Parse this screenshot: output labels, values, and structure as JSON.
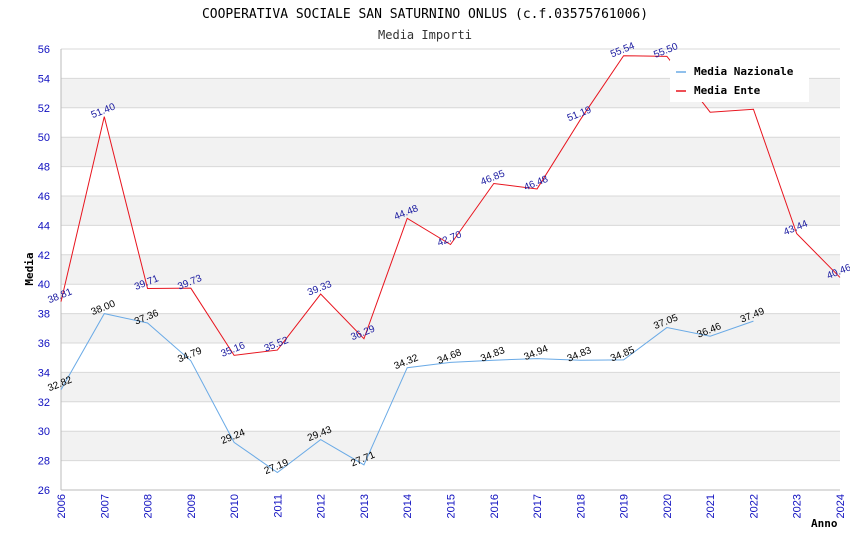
{
  "chart_data": {
    "type": "line",
    "title": "COOPERATIVA SOCIALE SAN SATURNINO ONLUS (c.f.03575761006)",
    "subtitle": "Media Importi",
    "xlabel": "Anno",
    "ylabel": "Media",
    "ylim": [
      26,
      56
    ],
    "ytick_step": 2,
    "yticks": [
      "26",
      "28",
      "30",
      "32",
      "34",
      "36",
      "38",
      "40",
      "42",
      "44",
      "46",
      "48",
      "50",
      "52",
      "54",
      "56"
    ],
    "categories": [
      "2006",
      "2007",
      "2008",
      "2009",
      "2010",
      "2011",
      "2012",
      "2013",
      "2014",
      "2015",
      "2016",
      "2017",
      "2018",
      "2019",
      "2020",
      "2021",
      "2022",
      "2023",
      "2024"
    ],
    "legend_position": "top-right",
    "series": [
      {
        "name": "Media Nazionale",
        "color": "#6aaae6",
        "label_color": "#000000",
        "values": [
          32.82,
          38.0,
          37.36,
          34.79,
          29.24,
          27.19,
          29.43,
          27.71,
          34.32,
          34.68,
          34.83,
          34.94,
          34.83,
          34.85,
          37.05,
          36.46,
          37.49,
          null,
          null
        ],
        "labels": [
          "32.82",
          "38.00",
          "37.36",
          "34.79",
          "29.24",
          "27.19",
          "29.43",
          "27.71",
          "34.32",
          "34.68",
          "34.83",
          "34.94",
          "34.83",
          "34.85",
          "37.05",
          "36.46",
          "37.49",
          "",
          ""
        ]
      },
      {
        "name": "Media Ente",
        "color": "#e8141e",
        "label_color": "#1a1aa0",
        "values": [
          38.81,
          51.4,
          39.71,
          39.73,
          35.16,
          35.52,
          39.33,
          36.29,
          44.48,
          42.7,
          46.85,
          46.48,
          51.19,
          55.54,
          55.5,
          51.7,
          51.9,
          43.44,
          40.46
        ],
        "labels": [
          "38.81",
          "51.40",
          "39.71",
          "39.73",
          "35.16",
          "35.52",
          "39.33",
          "36.29",
          "44.48",
          "42.70",
          "46.85",
          "46.48",
          "51.19",
          "55.54",
          "55.50",
          "",
          "",
          "43.44",
          "40.46"
        ]
      }
    ]
  }
}
